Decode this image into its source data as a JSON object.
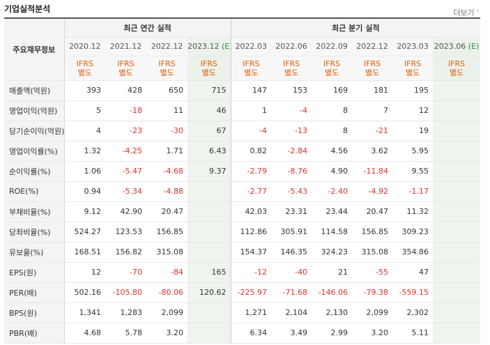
{
  "title": "기업실적분석",
  "more_label": "더보기",
  "corner_label": "주요재무정보",
  "groups": {
    "annual": "최근 연간 실적",
    "quarterly": "최근 분기 실적"
  },
  "ifrs": {
    "line1": "IFRS",
    "line2": "별도"
  },
  "estimate_tag": "(E)",
  "periods": [
    {
      "date": "2020.12",
      "estimate": false
    },
    {
      "date": "2021.12",
      "estimate": false
    },
    {
      "date": "2022.12",
      "estimate": false
    },
    {
      "date": "2023.12",
      "estimate": true
    },
    {
      "date": "2022.03",
      "estimate": false
    },
    {
      "date": "2022.06",
      "estimate": false
    },
    {
      "date": "2022.09",
      "estimate": false
    },
    {
      "date": "2022.12",
      "estimate": false
    },
    {
      "date": "2023.03",
      "estimate": false
    },
    {
      "date": "2023.06",
      "estimate": true
    }
  ],
  "rows": [
    {
      "label": "매출액(억원)",
      "values": [
        "393",
        "428",
        "650",
        "715",
        "147",
        "153",
        "169",
        "181",
        "195",
        ""
      ]
    },
    {
      "label": "영업이익(억원)",
      "values": [
        "5",
        "-18",
        "11",
        "46",
        "1",
        "-4",
        "8",
        "7",
        "12",
        ""
      ]
    },
    {
      "label": "당기순이익(억원)",
      "values": [
        "4",
        "-23",
        "-30",
        "67",
        "-4",
        "-13",
        "8",
        "-21",
        "19",
        ""
      ]
    },
    {
      "label": "영업이익률(%)",
      "values": [
        "1.32",
        "-4.25",
        "1.71",
        "6.43",
        "0.82",
        "-2.84",
        "4.56",
        "3.62",
        "5.95",
        ""
      ]
    },
    {
      "label": "순이익률(%)",
      "values": [
        "1.06",
        "-5.47",
        "-4.68",
        "9.37",
        "-2.79",
        "-8.76",
        "4.90",
        "-11.84",
        "9.55",
        ""
      ]
    },
    {
      "label": "ROE(%)",
      "values": [
        "0.94",
        "-5.34",
        "-4.88",
        "",
        "-2.77",
        "-5.43",
        "-2.40",
        "-4.92",
        "-1.17",
        ""
      ]
    },
    {
      "label": "부채비율(%)",
      "values": [
        "9.12",
        "42.90",
        "20.47",
        "",
        "42.03",
        "23.31",
        "23.44",
        "20.47",
        "11.32",
        ""
      ]
    },
    {
      "label": "당좌비율(%)",
      "values": [
        "524.27",
        "123.53",
        "156.85",
        "",
        "112.86",
        "305.91",
        "114.58",
        "156.85",
        "309.23",
        ""
      ]
    },
    {
      "label": "유보율(%)",
      "values": [
        "168.51",
        "156.82",
        "315.08",
        "",
        "154.37",
        "146.35",
        "324.23",
        "315.08",
        "354.86",
        ""
      ]
    },
    {
      "label": "EPS(원)",
      "values": [
        "12",
        "-70",
        "-84",
        "165",
        "-12",
        "-40",
        "21",
        "-55",
        "47",
        ""
      ]
    },
    {
      "label": "PER(배)",
      "values": [
        "502.16",
        "-105.80",
        "-80.06",
        "120.62",
        "-225.97",
        "-71.68",
        "-146.06",
        "-79.38",
        "-559.15",
        ""
      ]
    },
    {
      "label": "BPS(원)",
      "values": [
        "1,341",
        "1,283",
        "2,099",
        "",
        "1,271",
        "2,104",
        "2,130",
        "2,099",
        "2,302",
        ""
      ]
    },
    {
      "label": "PBR(배)",
      "values": [
        "4.68",
        "5.78",
        "3.20",
        "",
        "6.34",
        "3.49",
        "2.99",
        "3.20",
        "5.11",
        ""
      ]
    }
  ]
}
